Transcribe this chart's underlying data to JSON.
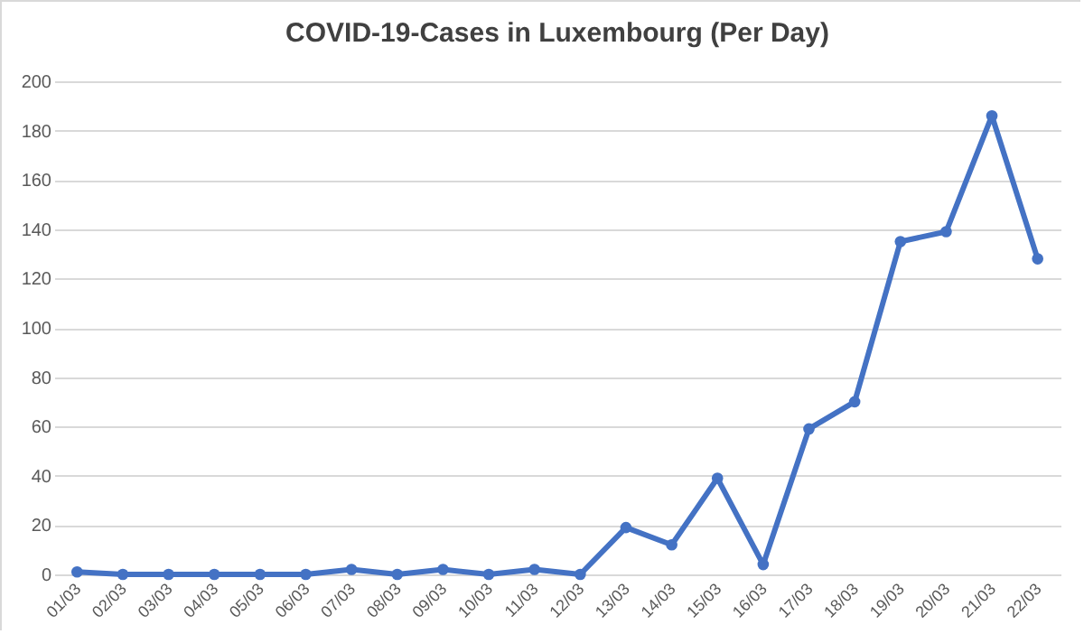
{
  "chart_data": {
    "type": "line",
    "title": "COVID-19-Cases in Luxembourg (Per Day)",
    "categories": [
      "01/03",
      "02/03",
      "03/03",
      "04/03",
      "05/03",
      "06/03",
      "07/03",
      "08/03",
      "09/03",
      "10/03",
      "11/03",
      "12/03",
      "13/03",
      "14/03",
      "15/03",
      "16/03",
      "17/03",
      "18/03",
      "19/03",
      "20/03",
      "21/03",
      "22/03"
    ],
    "series": [
      {
        "color": "#4472c4",
        "values": [
          1,
          0,
          0,
          0,
          0,
          0,
          2,
          0,
          2,
          0,
          2,
          0,
          19,
          12,
          39,
          4,
          59,
          70,
          135,
          139,
          186,
          128
        ]
      }
    ],
    "ylim": [
      0,
      200
    ],
    "yticks": [
      0,
      20,
      40,
      60,
      80,
      100,
      120,
      140,
      160,
      180,
      200
    ],
    "grid": "y",
    "marker": "circle",
    "line_style": "solid"
  }
}
